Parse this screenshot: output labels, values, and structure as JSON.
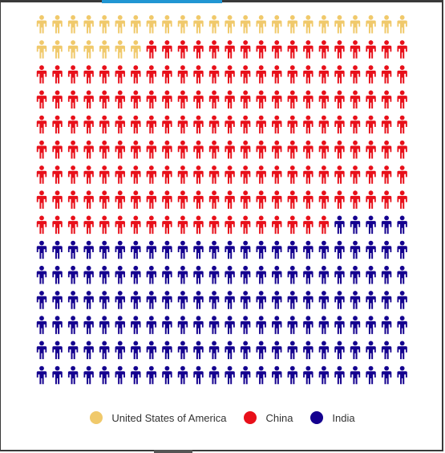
{
  "chart_data": {
    "type": "pictogram",
    "rows": 15,
    "columns": 24,
    "unit_icon": "person-icon",
    "fill_order": "row-major, top-left first",
    "series": [
      {
        "name": "United States of America",
        "value": 31,
        "color": "#f0c96b"
      },
      {
        "name": "China",
        "value": 180,
        "color": "#e8101a"
      },
      {
        "name": "India",
        "value": 149,
        "color": "#14008f"
      }
    ],
    "legend_position": "bottom-center"
  }
}
